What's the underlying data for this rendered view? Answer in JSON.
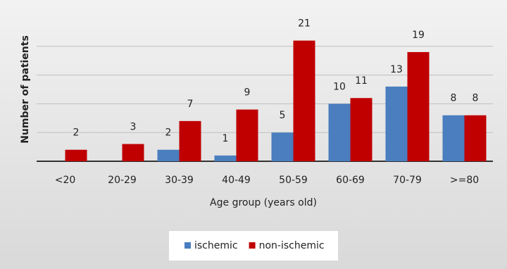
{
  "chart_data": {
    "type": "bar",
    "x_label": "Age group  (years old)",
    "y_label": "Number of patients",
    "categories": [
      "<20",
      "20-29",
      "30-39",
      "40-49",
      "50-59",
      "60-69",
      "70-79",
      ">=80"
    ],
    "series": [
      {
        "name": "ischemic",
        "color": "#4a7ebf",
        "values": [
          null,
          null,
          2,
          1,
          5,
          10,
          13,
          8
        ]
      },
      {
        "name": "non-ischemic",
        "color": "#c00000",
        "values": [
          2,
          3,
          7,
          9,
          21,
          11,
          19,
          8
        ]
      }
    ],
    "ylim": [
      0,
      25
    ],
    "yticks": [
      0,
      5,
      10,
      15,
      20
    ],
    "grid": true,
    "legend": "bottom"
  }
}
